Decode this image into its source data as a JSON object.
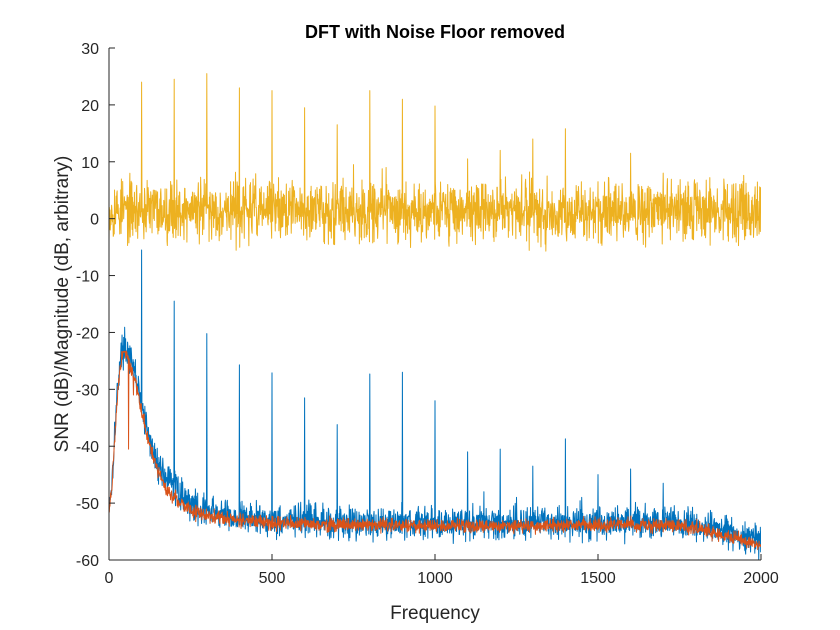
{
  "chart_data": {
    "type": "line",
    "title": "DFT with Noise Floor removed",
    "xlabel": "Frequency",
    "ylabel": "SNR (dB)/Magnitude (dB, arbitrary)",
    "xlim": [
      0,
      2000
    ],
    "ylim": [
      -60,
      30
    ],
    "xticks": [
      0,
      500,
      1000,
      1500,
      2000
    ],
    "xtick_labels": [
      "0",
      "500",
      "1000",
      "1500",
      "2000"
    ],
    "yticks": [
      -60,
      -50,
      -40,
      -30,
      -20,
      -10,
      0,
      10,
      20,
      30
    ],
    "ytick_labels": [
      "-60",
      "-50",
      "-40",
      "-30",
      "-20",
      "-10",
      "0",
      "10",
      "20",
      "30"
    ],
    "grid": false,
    "legend": "none",
    "series": [
      {
        "color": "#0072BD",
        "noise_amplitude_db": 1.4,
        "baseline": [
          [
            0,
            -50
          ],
          [
            8,
            -47
          ],
          [
            20,
            -35
          ],
          [
            30,
            -27
          ],
          [
            40,
            -23
          ],
          [
            50,
            -22.5
          ],
          [
            60,
            -24
          ],
          [
            70,
            -26
          ],
          [
            80,
            -27
          ],
          [
            100,
            -33
          ],
          [
            120,
            -38
          ],
          [
            140,
            -42
          ],
          [
            160,
            -44
          ],
          [
            180,
            -46
          ],
          [
            200,
            -47
          ],
          [
            230,
            -49
          ],
          [
            260,
            -50.5
          ],
          [
            300,
            -51.5
          ],
          [
            400,
            -52.5
          ],
          [
            500,
            -53
          ],
          [
            700,
            -53.3
          ],
          [
            1000,
            -53.5
          ],
          [
            1300,
            -53.5
          ],
          [
            1600,
            -53.3
          ],
          [
            1750,
            -53.5
          ],
          [
            1850,
            -54.5
          ],
          [
            1950,
            -56
          ],
          [
            2000,
            -56.5
          ]
        ],
        "peaks": [
          [
            100,
            -5.5
          ],
          [
            200,
            -14.5
          ],
          [
            300,
            -20.2
          ],
          [
            400,
            -25.7
          ],
          [
            500,
            -27.1
          ],
          [
            600,
            -31.5
          ],
          [
            700,
            -36.2
          ],
          [
            800,
            -27.3
          ],
          [
            900,
            -27
          ],
          [
            1000,
            -32
          ],
          [
            1100,
            -41
          ],
          [
            1200,
            -40.5
          ],
          [
            1300,
            -43.5
          ],
          [
            1400,
            -38.7
          ],
          [
            1500,
            -45
          ],
          [
            1600,
            -44
          ],
          [
            1700,
            -46.5
          ],
          [
            1000,
            -32
          ],
          [
            1150,
            -48
          ],
          [
            1250,
            -49
          ],
          [
            1450,
            -49
          ]
        ]
      },
      {
        "color": "#D95319",
        "noise_amplitude_db": 0.6,
        "baseline": [
          [
            0,
            -51
          ],
          [
            8,
            -48
          ],
          [
            20,
            -36
          ],
          [
            30,
            -28
          ],
          [
            40,
            -24
          ],
          [
            50,
            -23
          ],
          [
            60,
            -25
          ],
          [
            70,
            -27
          ],
          [
            80,
            -28
          ],
          [
            100,
            -34
          ],
          [
            120,
            -39
          ],
          [
            140,
            -43
          ],
          [
            160,
            -45.5
          ],
          [
            180,
            -48
          ],
          [
            200,
            -49
          ],
          [
            230,
            -50.5
          ],
          [
            260,
            -51.5
          ],
          [
            300,
            -52.2
          ],
          [
            400,
            -53
          ],
          [
            500,
            -53.5
          ],
          [
            700,
            -53.8
          ],
          [
            1000,
            -54
          ],
          [
            1300,
            -54
          ],
          [
            1600,
            -53.8
          ],
          [
            1750,
            -54
          ],
          [
            1850,
            -55
          ],
          [
            1950,
            -56.8
          ],
          [
            2000,
            -57.5
          ]
        ],
        "peaks": [
          [
            60,
            -40.5
          ],
          [
            75,
            -31
          ]
        ]
      },
      {
        "color": "#EDB120",
        "noise_amplitude_db": 2.6,
        "baseline": [
          [
            0,
            1.5
          ],
          [
            500,
            1.5
          ],
          [
            1000,
            1.5
          ],
          [
            1500,
            1.3
          ],
          [
            2000,
            1.3
          ]
        ],
        "peaks": [
          [
            100,
            24
          ],
          [
            200,
            24.5
          ],
          [
            300,
            25.5
          ],
          [
            400,
            23
          ],
          [
            500,
            22.5
          ],
          [
            600,
            19.5
          ],
          [
            700,
            16.5
          ],
          [
            750,
            9.5
          ],
          [
            800,
            22.5
          ],
          [
            850,
            9
          ],
          [
            900,
            21
          ],
          [
            1000,
            19.8
          ],
          [
            1100,
            10.5
          ],
          [
            1200,
            12
          ],
          [
            1300,
            14
          ],
          [
            1400,
            15.8
          ],
          [
            1500,
            6.5
          ],
          [
            1600,
            11.5
          ],
          [
            1700,
            8
          ],
          [
            2000,
            5
          ]
        ]
      }
    ]
  }
}
